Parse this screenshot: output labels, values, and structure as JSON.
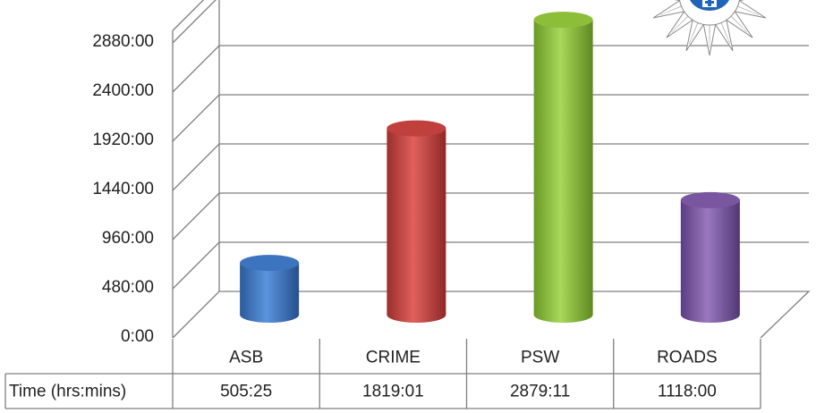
{
  "chart_data": {
    "type": "bar",
    "style": "3d-cylinder",
    "categories": [
      "ASB",
      "CRIME",
      "PSW",
      "ROADS"
    ],
    "series": [
      {
        "name": "Time (hrs:mins)",
        "values": [
          505.4167,
          1819.0167,
          2879.1833,
          1118.0
        ],
        "display_values": [
          "505:25",
          "1819:01",
          "2879:11",
          "1118:00"
        ]
      }
    ],
    "bar_colors": [
      "#3c74c0",
      "#c0403d",
      "#8dbe3a",
      "#7a56a0"
    ],
    "y_ticks": [
      0,
      480,
      960,
      1440,
      1920,
      2400,
      2880
    ],
    "y_tick_labels": [
      "0:00",
      "480:00",
      "960:00",
      "1440:00",
      "1920:00",
      "2400:00",
      "2880:00"
    ],
    "ylim": [
      0,
      3000
    ],
    "grid": true,
    "data_table": true,
    "logo": "police-star-badge"
  }
}
